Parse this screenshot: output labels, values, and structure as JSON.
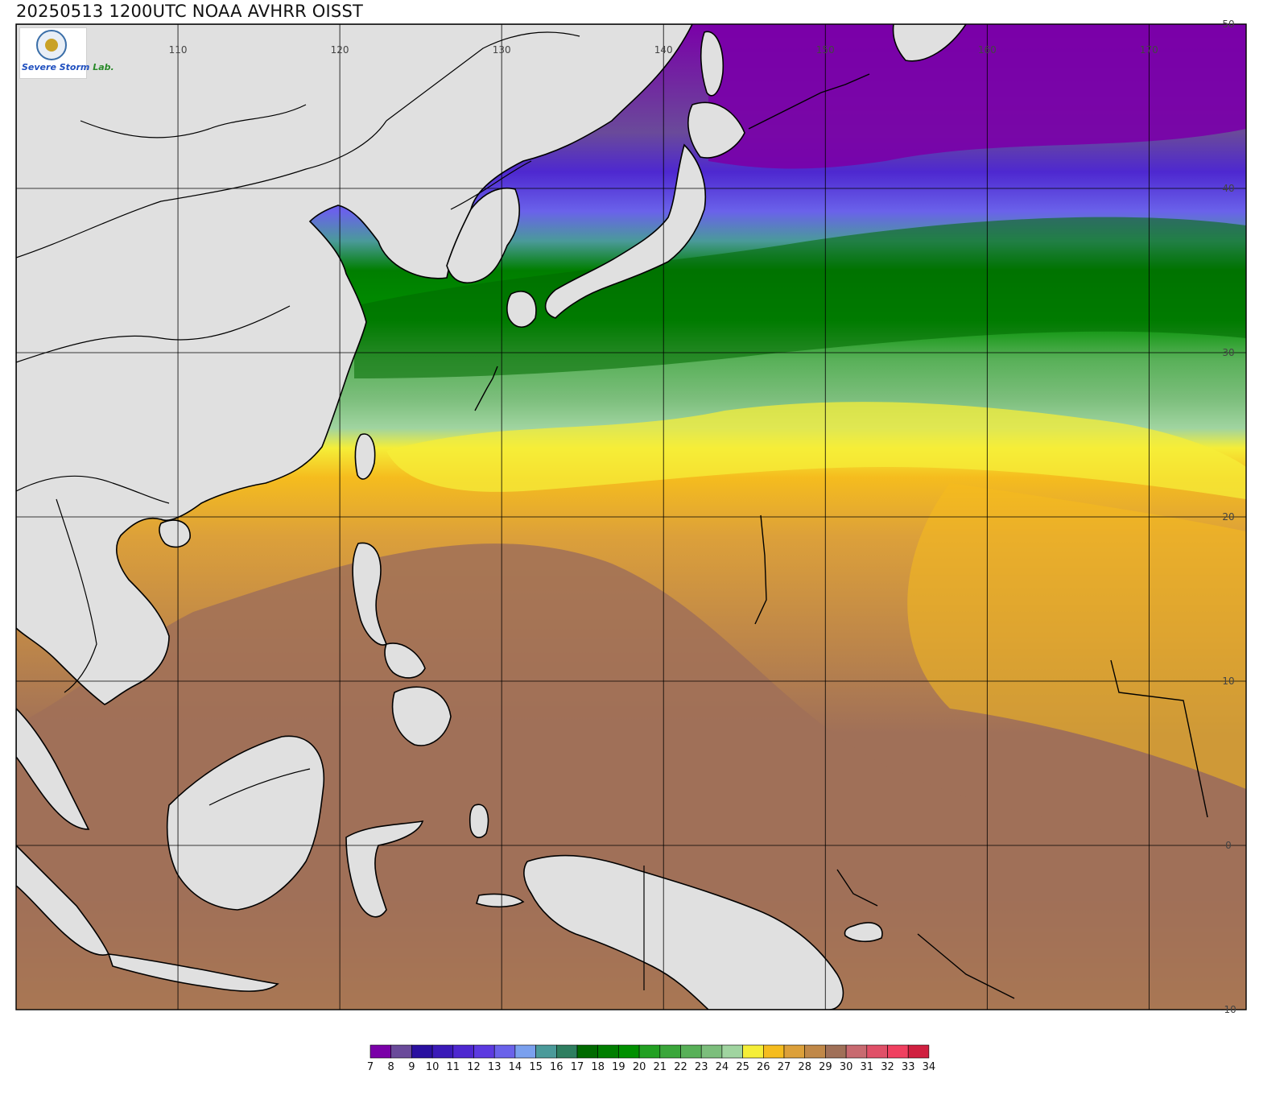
{
  "title": "20250513 1200UTC NOAA AVHRR OISST",
  "logo": {
    "text_a": "Severe Storm",
    "text_b": "Lab."
  },
  "map": {
    "lon_range": [
      100,
      176
    ],
    "lat_range": [
      -10,
      50
    ],
    "lon_labels": [
      "110",
      "120",
      "130",
      "140",
      "150",
      "160",
      "170"
    ],
    "lat_labels": [
      "50",
      "40",
      "30",
      "20",
      "10",
      "0",
      "-10"
    ],
    "land_color": "#e0e0e0",
    "coast_color": "#000000",
    "grid_color": "#000000"
  },
  "colorbar": {
    "labels": [
      "7",
      "8",
      "9",
      "10",
      "11",
      "12",
      "13",
      "14",
      "15",
      "16",
      "17",
      "18",
      "19",
      "20",
      "21",
      "22",
      "23",
      "24",
      "25",
      "26",
      "27",
      "28",
      "29",
      "30",
      "31",
      "32",
      "33",
      "34"
    ],
    "colors": [
      "#7a00a8",
      "#6a4a9a",
      "#2a10a0",
      "#3a1ab8",
      "#4e28d0",
      "#5c3ae0",
      "#6a62ea",
      "#7aa0ee",
      "#4a9a9a",
      "#2e7e60",
      "#006a00",
      "#007e00",
      "#009000",
      "#22a022",
      "#3aa63a",
      "#58b058",
      "#7cbe7c",
      "#a0d4a0",
      "#f5ee38",
      "#f5bc1e",
      "#dca03a",
      "#c08848",
      "#a07058",
      "#c86a70",
      "#e05068",
      "#f04060",
      "#d02040"
    ]
  }
}
